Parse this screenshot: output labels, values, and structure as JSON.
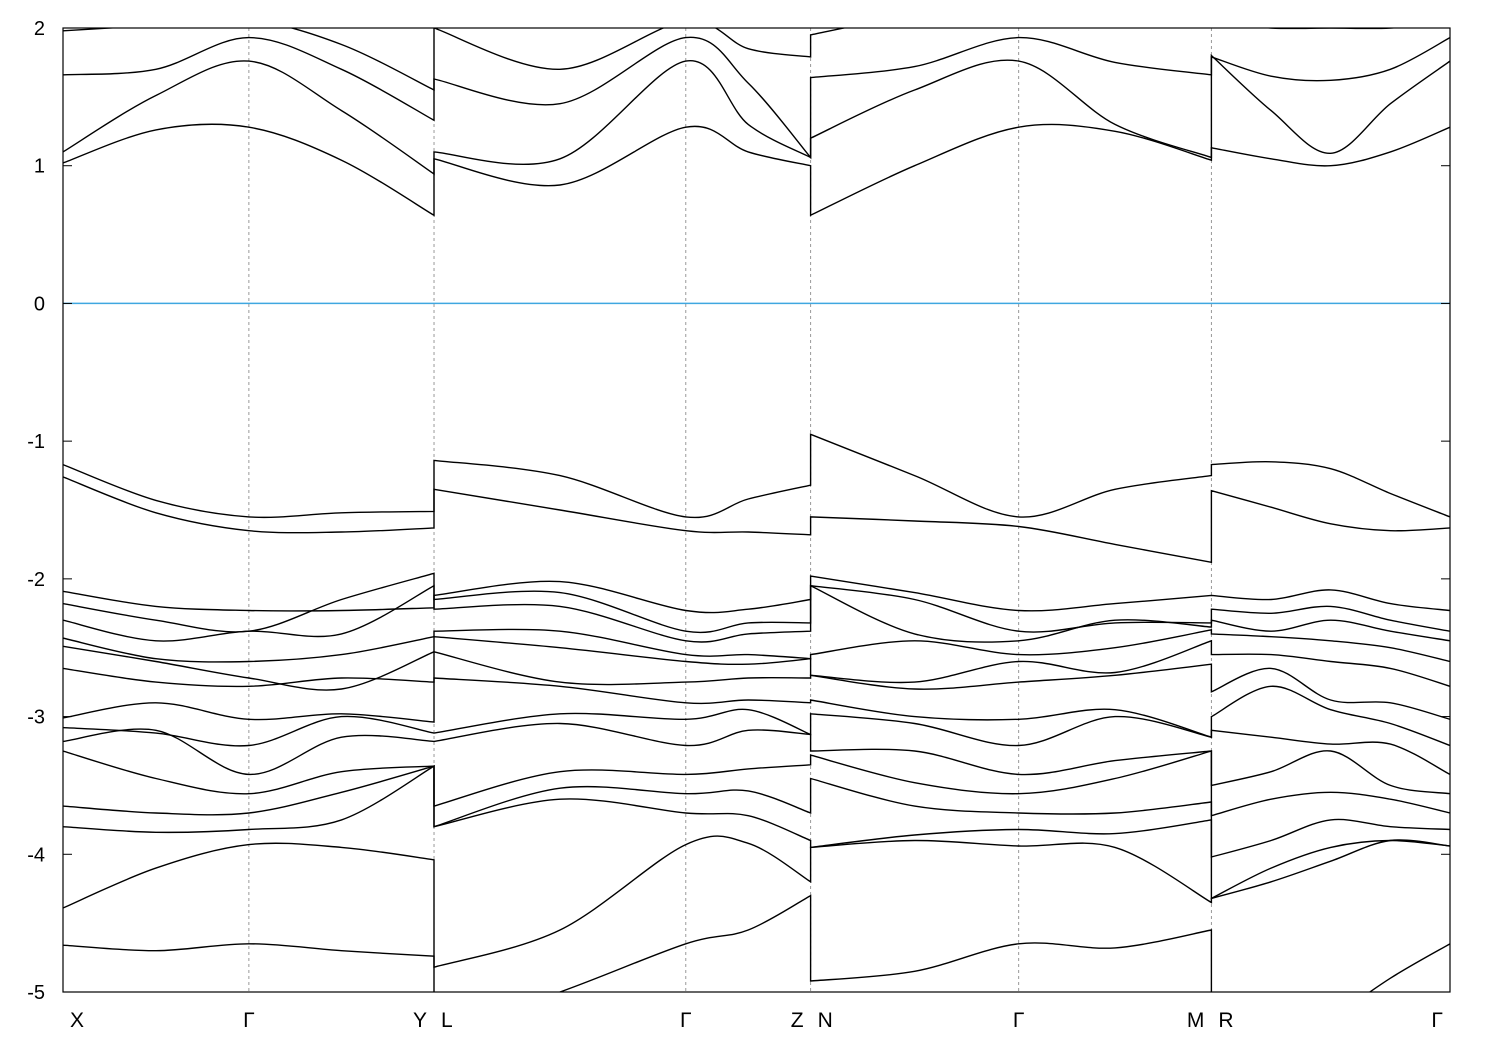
{
  "chart_data": {
    "type": "line",
    "title": "",
    "xlabel": "",
    "ylabel": "",
    "ylim": [
      -5,
      2
    ],
    "yticks": [
      2,
      1,
      0,
      -1,
      -2,
      -3,
      -4,
      -5
    ],
    "ytick_labels": [
      "2",
      "1",
      "0",
      "-1",
      "-2",
      "-3",
      "-4",
      "-5"
    ],
    "grid": "vertical dashed lines at high-symmetry points",
    "fermi_level": {
      "value": 0,
      "color": "#3fa7e0"
    },
    "band_color": "#000000",
    "xlim": [
      0,
      1
    ],
    "kpoints": [
      {
        "label": "X",
        "k": 0
      },
      {
        "label": "Γ",
        "k": 0.134
      },
      {
        "label": "Y",
        "k": 0.2675
      },
      {
        "label": "L",
        "k": 0.2675
      },
      {
        "label": "Γ",
        "k": 0.449
      },
      {
        "label": "Z",
        "k": 0.539
      },
      {
        "label": "N",
        "k": 0.539
      },
      {
        "label": "Γ",
        "k": 0.689
      },
      {
        "label": "M",
        "k": 0.828
      },
      {
        "label": "R",
        "k": 0.828
      },
      {
        "label": "Γ",
        "k": 1.0
      }
    ],
    "segments": [
      {
        "path": "X-Γ-Y",
        "k": [
          0,
          0.067,
          0.134,
          0.2008,
          0.2675
        ],
        "bands": [
          [
            1.02,
            1.26,
            1.28,
            1.04,
            0.64
          ],
          [
            1.1,
            1.51,
            1.76,
            1.4,
            0.94
          ],
          [
            1.66,
            1.7,
            1.93,
            1.7,
            1.33
          ],
          [
            1.98,
            2.02,
            2.06,
            1.88,
            1.55
          ],
          [
            -1.17,
            -1.43,
            -1.55,
            -1.52,
            -1.51
          ],
          [
            -1.26,
            -1.52,
            -1.65,
            -1.66,
            -1.63
          ],
          [
            -2.09,
            -2.2,
            -2.23,
            -2.23,
            -2.21
          ],
          [
            -2.18,
            -2.3,
            -2.38,
            -2.15,
            -1.96
          ],
          [
            -2.3,
            -2.45,
            -2.38,
            -2.4,
            -2.05
          ],
          [
            -2.43,
            -2.58,
            -2.6,
            -2.55,
            -2.42
          ],
          [
            -2.49,
            -2.6,
            -2.72,
            -2.8,
            -2.53
          ],
          [
            -2.65,
            -2.75,
            -2.78,
            -2.72,
            -2.75
          ],
          [
            -3.01,
            -2.9,
            -3.02,
            -2.98,
            -3.04
          ],
          [
            -3.08,
            -3.12,
            -3.21,
            -3.0,
            -3.12
          ],
          [
            -3.18,
            -3.1,
            -3.42,
            -3.15,
            -3.18
          ],
          [
            -3.25,
            -3.45,
            -3.56,
            -3.4,
            -3.36
          ],
          [
            -3.65,
            -3.7,
            -3.7,
            -3.55,
            -3.36
          ],
          [
            -3.8,
            -3.84,
            -3.82,
            -3.75,
            -3.36
          ],
          [
            -4.39,
            -4.1,
            -3.93,
            -3.95,
            -4.04
          ],
          [
            -4.66,
            -4.7,
            -4.65,
            -4.7,
            -4.74
          ]
        ]
      },
      {
        "path": "L-Γ-Z",
        "k": [
          0.2675,
          0.3583,
          0.449,
          0.494,
          0.539
        ],
        "bands": [
          [
            1.05,
            0.86,
            1.28,
            1.1,
            1.0
          ],
          [
            1.1,
            1.05,
            1.76,
            1.3,
            1.06
          ],
          [
            1.63,
            1.45,
            1.93,
            1.6,
            1.06
          ],
          [
            2.0,
            1.7,
            2.05,
            1.85,
            1.79
          ],
          [
            -1.14,
            -1.25,
            -1.55,
            -1.42,
            -1.32
          ],
          [
            -1.35,
            -1.5,
            -1.65,
            -1.66,
            -1.68
          ],
          [
            -2.12,
            -2.02,
            -2.23,
            -2.22,
            -2.15
          ],
          [
            -2.15,
            -2.1,
            -2.38,
            -2.32,
            -2.32
          ],
          [
            -2.22,
            -2.2,
            -2.45,
            -2.4,
            -2.38
          ],
          [
            -2.38,
            -2.38,
            -2.55,
            -2.55,
            -2.58
          ],
          [
            -2.42,
            -2.5,
            -2.6,
            -2.62,
            -2.58
          ],
          [
            -2.53,
            -2.75,
            -2.75,
            -2.72,
            -2.72
          ],
          [
            -2.72,
            -2.78,
            -2.9,
            -2.88,
            -2.9
          ],
          [
            -3.12,
            -2.98,
            -3.02,
            -2.95,
            -3.13
          ],
          [
            -3.18,
            -3.05,
            -3.21,
            -3.1,
            -3.13
          ],
          [
            -3.65,
            -3.4,
            -3.42,
            -3.38,
            -3.35
          ],
          [
            -3.8,
            -3.52,
            -3.56,
            -3.54,
            -3.7
          ],
          [
            -3.8,
            -3.6,
            -3.7,
            -3.72,
            -3.9
          ],
          [
            -4.82,
            -4.55,
            -3.93,
            -3.92,
            -4.2
          ],
          [
            -5.3,
            -5.0,
            -4.65,
            -4.55,
            -4.3
          ]
        ]
      },
      {
        "path": "N-Γ-M",
        "k": [
          0.539,
          0.614,
          0.689,
          0.7585,
          0.828
        ],
        "bands": [
          [
            0.64,
            1.0,
            1.28,
            1.25,
            1.04
          ],
          [
            1.2,
            1.55,
            1.76,
            1.3,
            1.06
          ],
          [
            1.64,
            1.72,
            1.93,
            1.75,
            1.66
          ],
          [
            1.95,
            2.1,
            2.2,
            2.2,
            2.2
          ],
          [
            -0.95,
            -1.25,
            -1.55,
            -1.35,
            -1.25
          ],
          [
            -1.55,
            -1.58,
            -1.62,
            -1.75,
            -1.88
          ],
          [
            -1.98,
            -2.1,
            -2.23,
            -2.18,
            -2.12
          ],
          [
            -2.05,
            -2.15,
            -2.38,
            -2.32,
            -2.32
          ],
          [
            -2.05,
            -2.4,
            -2.45,
            -2.3,
            -2.35
          ],
          [
            -2.55,
            -2.45,
            -2.55,
            -2.5,
            -2.37
          ],
          [
            -2.7,
            -2.75,
            -2.6,
            -2.68,
            -2.45
          ],
          [
            -2.7,
            -2.8,
            -2.75,
            -2.7,
            -2.62
          ],
          [
            -2.88,
            -3.0,
            -3.02,
            -2.95,
            -3.15
          ],
          [
            -2.98,
            -3.05,
            -3.21,
            -3.0,
            -3.15
          ],
          [
            -3.25,
            -3.25,
            -3.42,
            -3.32,
            -3.25
          ],
          [
            -3.28,
            -3.48,
            -3.56,
            -3.45,
            -3.25
          ],
          [
            -3.45,
            -3.65,
            -3.7,
            -3.7,
            -3.62
          ],
          [
            -3.95,
            -3.86,
            -3.82,
            -3.85,
            -3.75
          ],
          [
            -3.95,
            -3.9,
            -3.94,
            -3.95,
            -4.35
          ],
          [
            -4.92,
            -4.85,
            -4.65,
            -4.68,
            -4.55
          ]
        ]
      },
      {
        "path": "R-Γ",
        "k": [
          0.828,
          0.871,
          0.914,
          0.957,
          1.0
        ],
        "bands": [
          [
            1.13,
            1.05,
            1.0,
            1.1,
            1.28
          ],
          [
            1.8,
            1.4,
            1.09,
            1.45,
            1.76
          ],
          [
            1.79,
            1.65,
            1.62,
            1.7,
            1.93
          ],
          [
            2.05,
            2.0,
            2.0,
            2.0,
            2.05
          ],
          [
            -1.17,
            -1.15,
            -1.2,
            -1.38,
            -1.55
          ],
          [
            -1.36,
            -1.48,
            -1.6,
            -1.65,
            -1.63
          ],
          [
            -2.12,
            -2.15,
            -2.08,
            -2.18,
            -2.23
          ],
          [
            -2.22,
            -2.25,
            -2.2,
            -2.3,
            -2.38
          ],
          [
            -2.3,
            -2.38,
            -2.3,
            -2.38,
            -2.45
          ],
          [
            -2.4,
            -2.42,
            -2.45,
            -2.5,
            -2.6
          ],
          [
            -2.55,
            -2.55,
            -2.6,
            -2.65,
            -2.78
          ],
          [
            -2.82,
            -2.65,
            -2.88,
            -2.9,
            -3.02
          ],
          [
            -3.0,
            -2.78,
            -2.95,
            -3.05,
            -3.21
          ],
          [
            -3.1,
            -3.15,
            -3.2,
            -3.2,
            -3.42
          ],
          [
            -3.5,
            -3.4,
            -3.25,
            -3.5,
            -3.56
          ],
          [
            -3.72,
            -3.6,
            -3.55,
            -3.6,
            -3.7
          ],
          [
            -4.02,
            -3.9,
            -3.75,
            -3.8,
            -3.82
          ],
          [
            -4.32,
            -4.2,
            -4.05,
            -3.9,
            -3.94
          ],
          [
            -4.32,
            -4.1,
            -3.95,
            -3.9,
            -3.94
          ],
          [
            -5.8,
            -5.5,
            -5.2,
            -4.9,
            -4.65
          ]
        ]
      }
    ]
  }
}
